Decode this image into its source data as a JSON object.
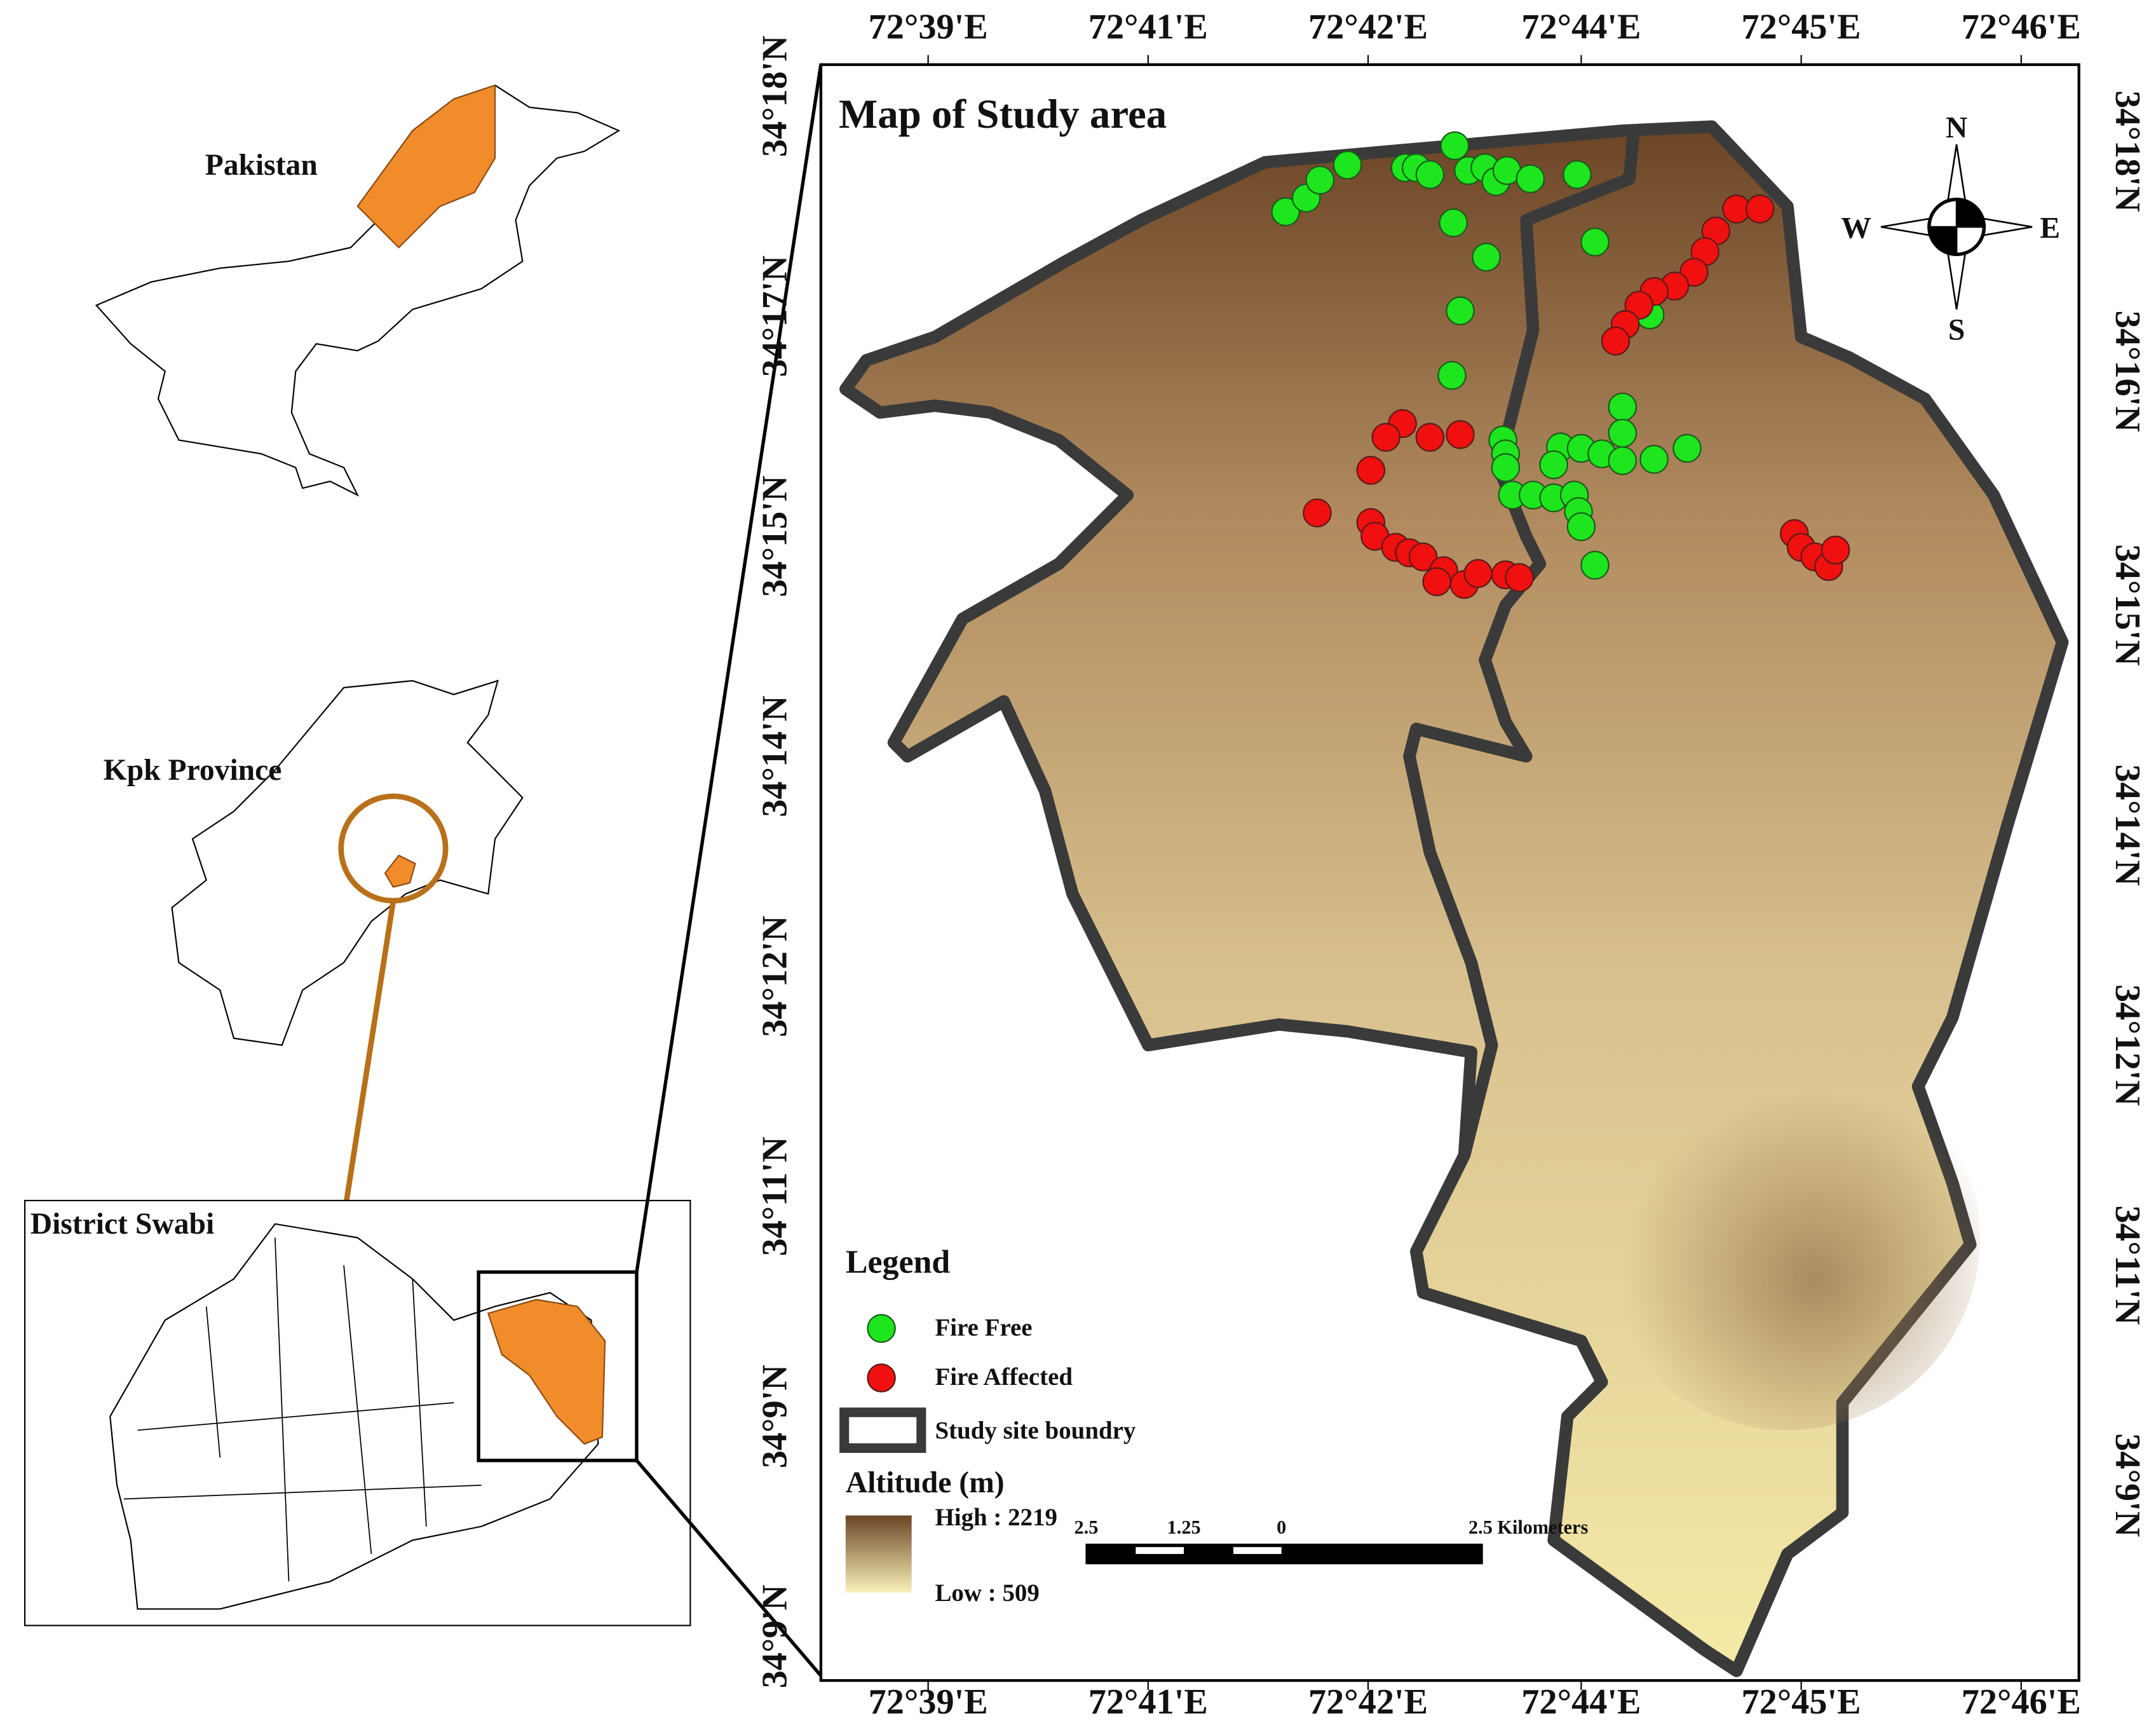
{
  "inset_maps": {
    "pakistan": "Pakistan",
    "kpk": "Kpk Province",
    "district": "District Swabi"
  },
  "map": {
    "title": "Map of Study area",
    "top_labels": [
      "72°39'E",
      "72°41'E",
      "72°42'E",
      "72°44'E",
      "72°45'E",
      "72°46'E"
    ],
    "bottom_labels": [
      "72°39'E",
      "72°41'E",
      "72°42'E",
      "72°44'E",
      "72°45'E",
      "72°46'E"
    ],
    "left_labels": [
      "34°18'N",
      "34°17'N",
      "34°15'N",
      "34°14'N",
      "34°12'N",
      "34°11'N",
      "34°9'N",
      "34°9'N"
    ],
    "right_labels": [
      "34°18'N",
      "34°16'N",
      "34°15'N",
      "34°14'N",
      "34°12'N",
      "34°11'N",
      "34°9'N"
    ],
    "compass": {
      "n": "N",
      "s": "S",
      "e": "E",
      "w": "W"
    },
    "legend": {
      "title": "Legend",
      "items": [
        "Fire Free",
        "Fire Affected",
        "Study site boundry"
      ],
      "altitude_title": "Altitude (m)",
      "high": "High : 2219",
      "low": "Low : 509"
    },
    "scale_bar": [
      "2.5",
      "1.25",
      "0",
      "2.5 Kilometers"
    ]
  }
}
